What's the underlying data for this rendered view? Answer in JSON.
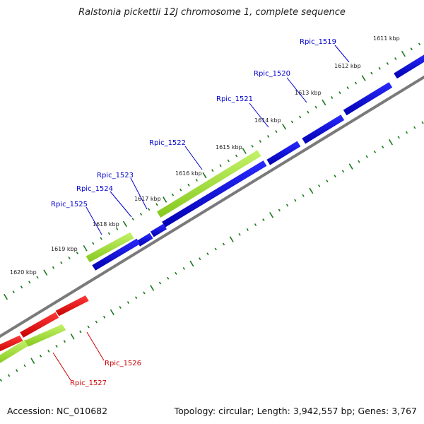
{
  "title": "Ralstonia pickettii 12J chromosome 1, complete sequence",
  "footer": {
    "accession": "Accession: NC_010682",
    "stats": "Topology: circular; Length: 3,942,557 bp; Genes: 3,767"
  },
  "colors": {
    "backbone": "#7f7f7f",
    "tick": "#1a7a1a",
    "forward_gene": "#0000dd",
    "reverse_gene": "#ee1111",
    "orf": "#a2e23a",
    "forward_label": "#0000cc",
    "reverse_label": "#cc0000"
  },
  "kbp_ticks": [
    {
      "label": "1611 kbp",
      "kbp": 1611
    },
    {
      "label": "1612 kbp",
      "kbp": 1612
    },
    {
      "label": "1613 kbp",
      "kbp": 1613
    },
    {
      "label": "1614 kbp",
      "kbp": 1614
    },
    {
      "label": "1615 kbp",
      "kbp": 1615
    },
    {
      "label": "1616 kbp",
      "kbp": 1616
    },
    {
      "label": "1617 kbp",
      "kbp": 1617
    },
    {
      "label": "1618 kbp",
      "kbp": 1618
    },
    {
      "label": "1619 kbp",
      "kbp": 1619
    },
    {
      "label": "1620 kbp",
      "kbp": 1620
    }
  ],
  "gene_labels": [
    {
      "name": "Rpic_1519",
      "strand": "forward"
    },
    {
      "name": "Rpic_1520",
      "strand": "forward"
    },
    {
      "name": "Rpic_1521",
      "strand": "forward"
    },
    {
      "name": "Rpic_1522",
      "strand": "forward"
    },
    {
      "name": "Rpic_1523",
      "strand": "forward"
    },
    {
      "name": "Rpic_1524",
      "strand": "forward"
    },
    {
      "name": "Rpic_1525",
      "strand": "forward"
    },
    {
      "name": "Rpic_1526",
      "strand": "reverse"
    },
    {
      "name": "Rpic_1527",
      "strand": "reverse"
    }
  ]
}
